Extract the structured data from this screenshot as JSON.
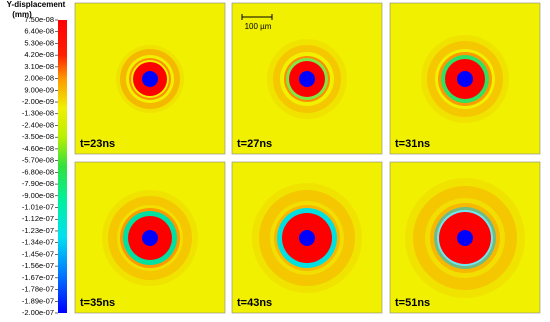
{
  "colorbar": {
    "title": "Y-displacement",
    "unit": "(mm)",
    "labels": [
      "7.50e-08",
      "6.40e-08",
      "5.30e-08",
      "4.20e-08",
      "3.10e-08",
      "2.00e-08",
      "9.00e-09",
      "-2.00e-09",
      "-1.30e-08",
      "-2.40e-08",
      "-3.50e-08",
      "-4.60e-08",
      "-5.70e-08",
      "-6.80e-08",
      "-7.90e-08",
      "-9.00e-08",
      "-1.01e-07",
      "-1.12e-07",
      "-1.23e-07",
      "-1.34e-07",
      "-1.45e-07",
      "-1.56e-07",
      "-1.67e-07",
      "-1.78e-07",
      "-1.89e-07",
      "-2.00e-07"
    ]
  },
  "panels": [
    {
      "label": "t=23ns"
    },
    {
      "label": "t=27ns"
    },
    {
      "label": "t=31ns"
    },
    {
      "label": "t=35ns"
    },
    {
      "label": "t=43ns"
    },
    {
      "label": "t=51ns"
    }
  ],
  "scale_bar": {
    "label": "100 µm"
  }
}
